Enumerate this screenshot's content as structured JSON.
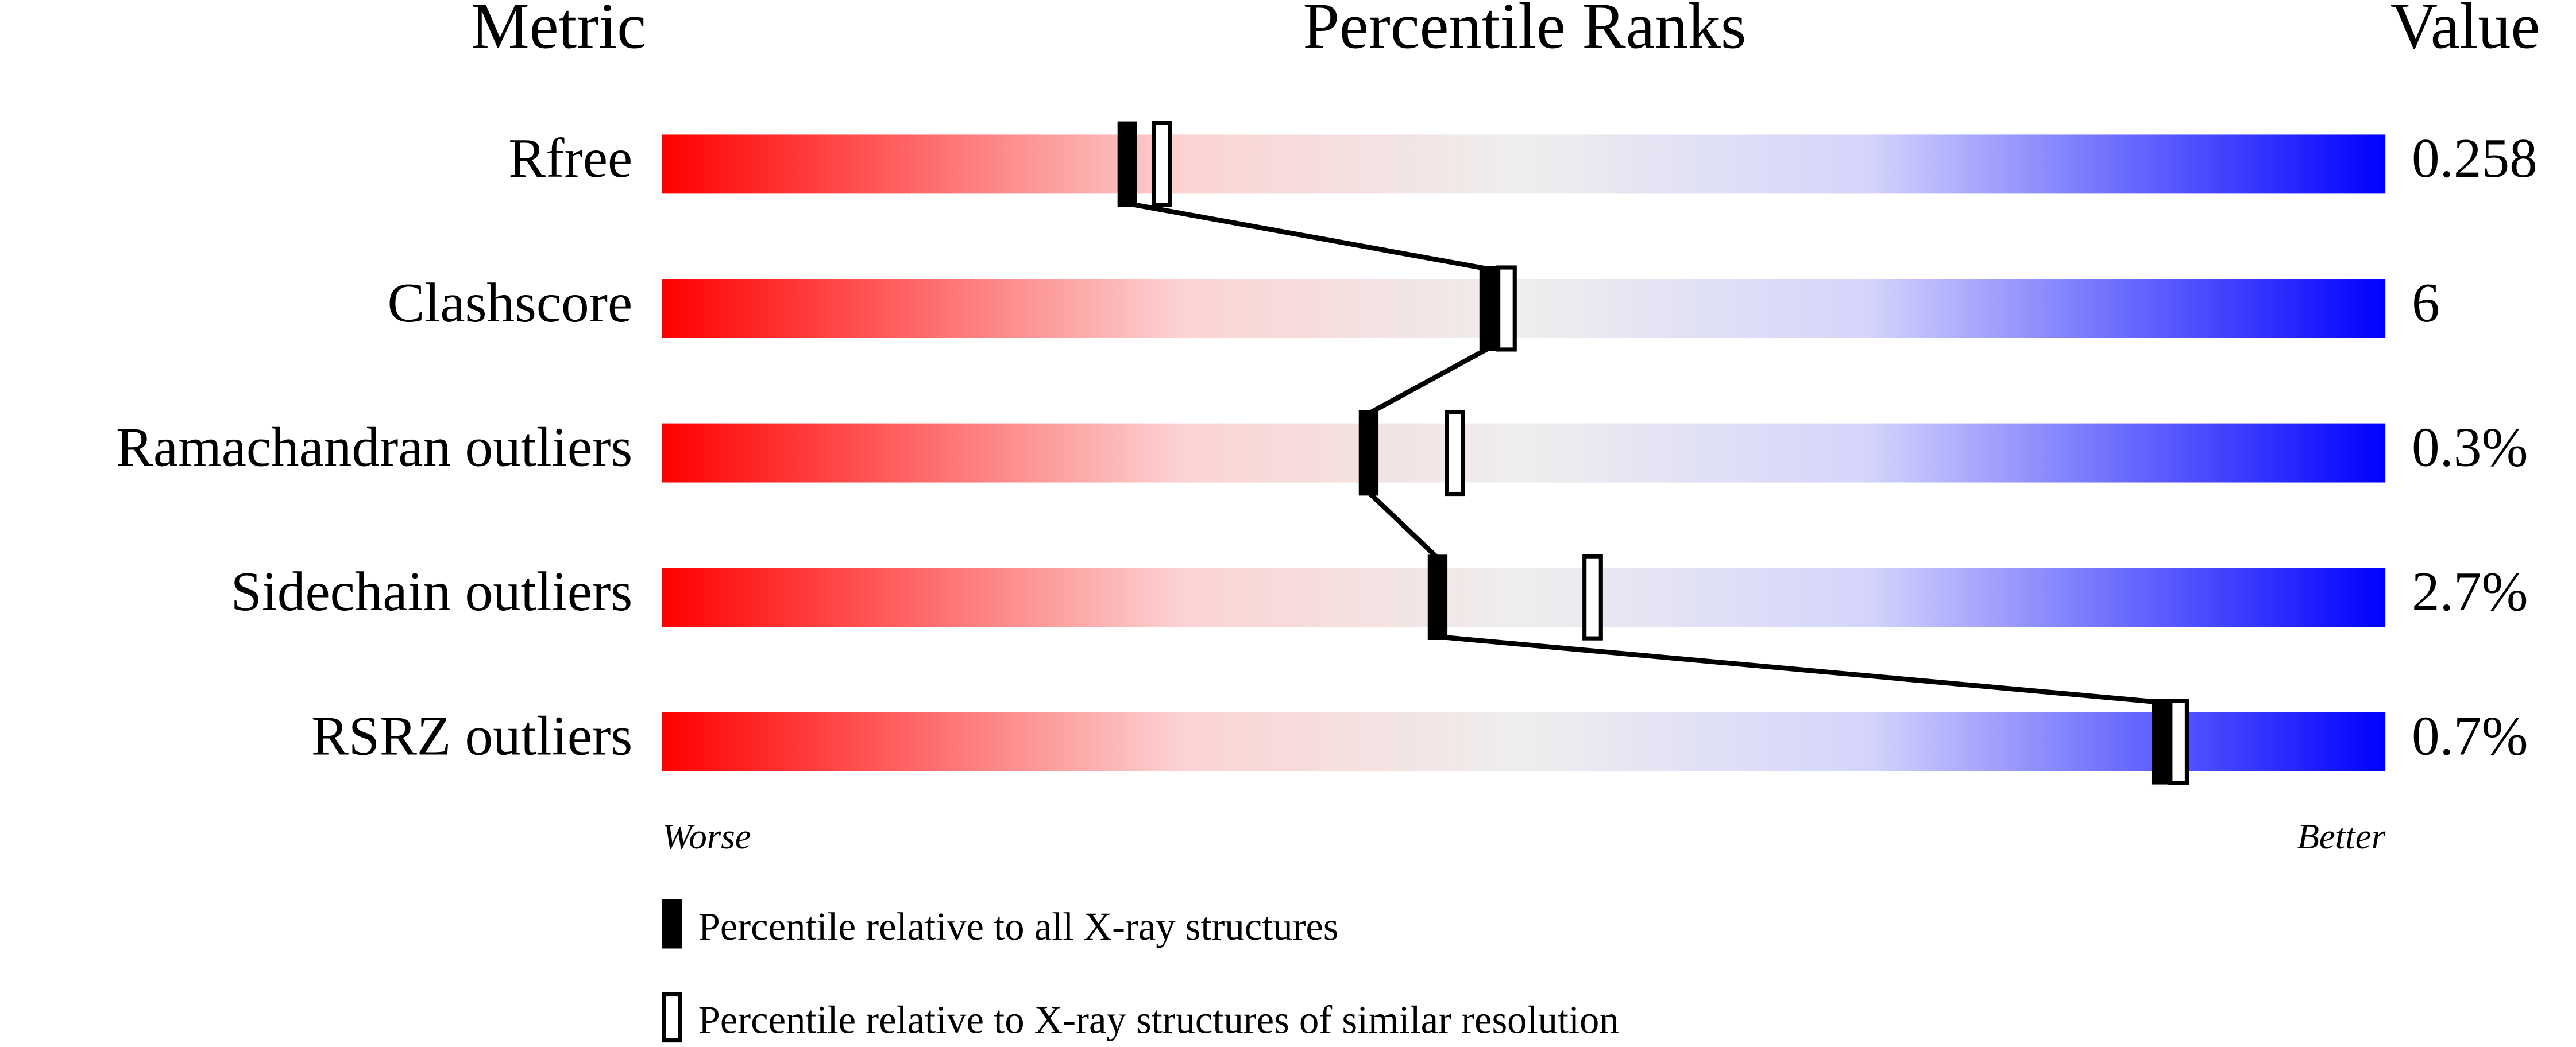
{
  "chart_data": {
    "type": "percentile",
    "headers": {
      "metric": "Metric",
      "ranks": "Percentile Ranks",
      "value": "Value"
    },
    "categories": [
      "Rfree",
      "Clashscore",
      "Ramachandran outliers",
      "Sidechain outliers",
      "RSRZ outliers"
    ],
    "series": [
      {
        "name": "Percentile relative to all X-ray structures",
        "color": "#000000",
        "filled": true,
        "values": [
          27,
          48,
          41,
          45,
          87
        ]
      },
      {
        "name": "Percentile relative to X-ray structures of similar resolution",
        "color": "#000000",
        "filled": false,
        "values": [
          29,
          49,
          46,
          54,
          88
        ]
      }
    ],
    "value_texts": [
      "0.258",
      "6",
      "0.3%",
      "2.7%",
      "0.7%"
    ],
    "xlim": [
      0,
      100
    ],
    "scale_labels": {
      "worse": "Worse",
      "better": "Better"
    }
  }
}
